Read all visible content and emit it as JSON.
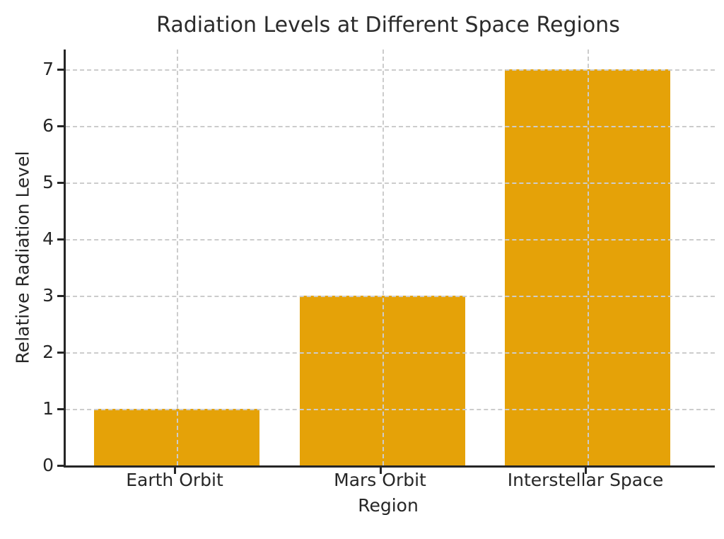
{
  "chart_data": {
    "type": "bar",
    "title": "Radiation Levels at Different Space Regions",
    "xlabel": "Region",
    "ylabel": "Relative Radiation Level",
    "categories": [
      "Earth Orbit",
      "Mars Orbit",
      "Interstellar Space"
    ],
    "values": [
      1,
      3,
      7
    ],
    "yticks": [
      0,
      1,
      2,
      3,
      4,
      5,
      6,
      7
    ],
    "ylim": [
      0,
      7.35
    ],
    "grid": "dashed, horizontal and vertical, drawn above bars",
    "legend": "none",
    "colors": {
      "bar": "#E5A208",
      "grid": "#cccccc",
      "axis": "#262626",
      "text": "#262626",
      "title": "#2b2b2b",
      "background": "#ffffff"
    }
  }
}
